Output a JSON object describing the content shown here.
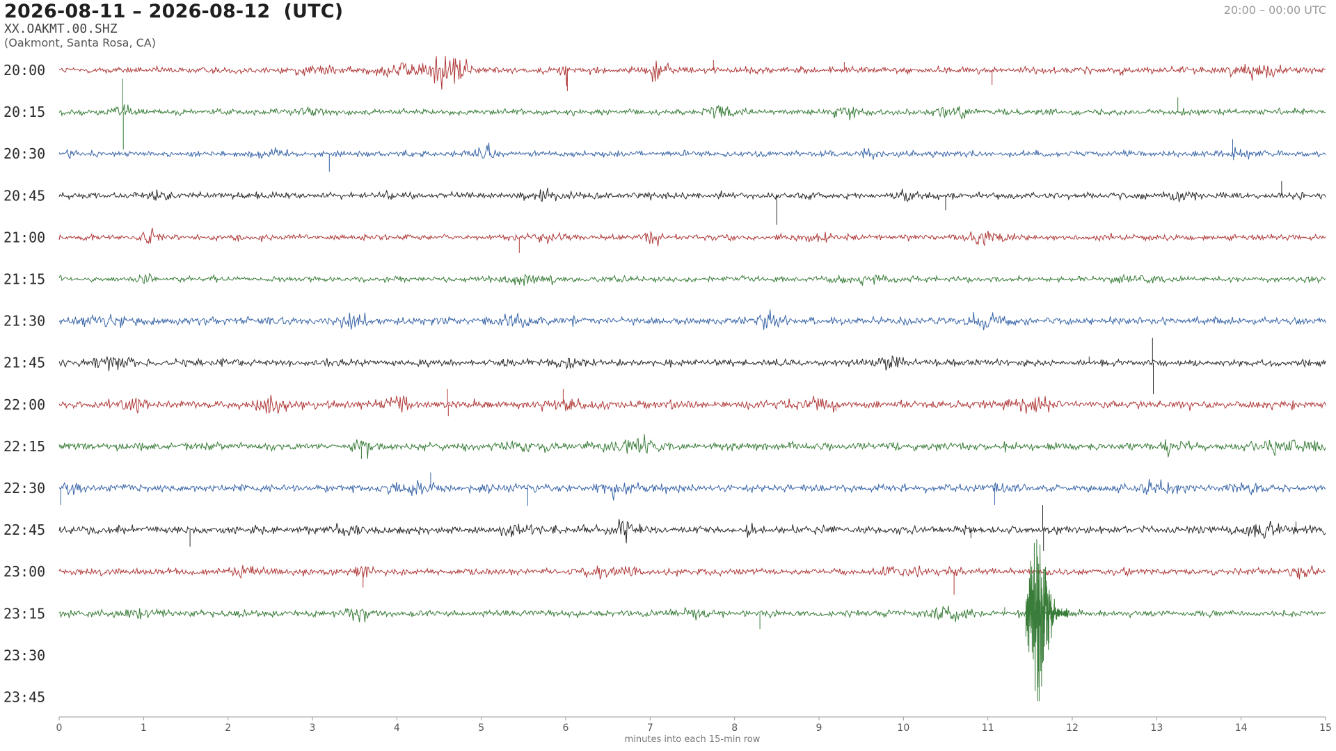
{
  "header": {
    "title": "2026-08-11 – 2026-08-12  (UTC)",
    "station": "XX.OAKMT.00.SHZ",
    "location": "(Oakmont, Santa Rosa, CA)",
    "time_range": "20:00 – 00:00 UTC"
  },
  "chart_data": {
    "type": "line",
    "title": "2026-08-11 – 2026-08-12  (UTC)",
    "xlabel": "minutes into each 15-min row",
    "ylabel": "",
    "xlim": [
      0,
      15
    ],
    "x_ticks": [
      "0",
      "1",
      "2",
      "3",
      "4",
      "5",
      "6",
      "7",
      "8",
      "9",
      "10",
      "11",
      "12",
      "13",
      "14",
      "15"
    ],
    "grid": false,
    "colors": [
      "#b03a3a",
      "#3a7d3a",
      "#3a66a8",
      "#2b2b2b"
    ],
    "rows": [
      {
        "label": "20:00",
        "color": "#b03a3a",
        "noise": 0.35,
        "bursts": [
          [
            4.6,
            1.3,
            0.25
          ],
          [
            4.1,
            0.55,
            0.3
          ],
          [
            7.1,
            0.8,
            0.12
          ],
          [
            6.0,
            0.9,
            0.05
          ],
          [
            14.2,
            0.45,
            0.3
          ],
          [
            3.0,
            0.3,
            0.2
          ]
        ],
        "spikes": [
          [
            6.02,
            -1.0
          ],
          [
            7.75,
            0.5
          ],
          [
            11.05,
            -0.7
          ],
          [
            12.6,
            -0.25
          ],
          [
            9.3,
            0.4
          ]
        ]
      },
      {
        "label": "20:15",
        "color": "#3a7d3a",
        "noise": 0.3,
        "bursts": [
          [
            7.9,
            0.4,
            0.2
          ],
          [
            9.3,
            0.35,
            0.2
          ],
          [
            10.6,
            0.35,
            0.2
          ],
          [
            0.75,
            0.3,
            0.15
          ],
          [
            3.0,
            0.25,
            0.2
          ]
        ],
        "spikes": [
          [
            0.75,
            1.6
          ],
          [
            0.76,
            -1.8
          ],
          [
            13.25,
            0.7
          ]
        ]
      },
      {
        "label": "20:30",
        "color": "#3a66a8",
        "noise": 0.3,
        "bursts": [
          [
            5.05,
            0.65,
            0.1
          ],
          [
            9.6,
            0.5,
            0.1
          ],
          [
            2.5,
            0.3,
            0.2
          ],
          [
            14.0,
            0.35,
            0.15
          ],
          [
            0.1,
            0.3,
            0.1
          ]
        ],
        "spikes": [
          [
            3.2,
            -0.85
          ],
          [
            13.9,
            0.7
          ],
          [
            13.91,
            -0.3
          ]
        ]
      },
      {
        "label": "20:45",
        "color": "#2b2b2b",
        "noise": 0.35,
        "bursts": [
          [
            5.8,
            0.35,
            0.15
          ],
          [
            10.1,
            0.35,
            0.2
          ],
          [
            13.2,
            0.35,
            0.15
          ],
          [
            1.2,
            0.3,
            0.1
          ]
        ],
        "spikes": [
          [
            8.5,
            -1.4
          ],
          [
            10.5,
            -0.7
          ],
          [
            14.48,
            0.7
          ],
          [
            8.9,
            -0.2
          ]
        ]
      },
      {
        "label": "21:00",
        "color": "#b03a3a",
        "noise": 0.3,
        "bursts": [
          [
            7.05,
            0.7,
            0.1
          ],
          [
            11.0,
            0.45,
            0.3
          ],
          [
            1.1,
            0.45,
            0.12
          ],
          [
            5.8,
            0.35,
            0.2
          ],
          [
            9.0,
            0.3,
            0.12
          ]
        ],
        "spikes": [
          [
            5.45,
            -0.75
          ]
        ]
      },
      {
        "label": "21:15",
        "color": "#3a7d3a",
        "noise": 0.28,
        "bursts": [
          [
            1.0,
            0.35,
            0.1
          ],
          [
            5.5,
            0.3,
            0.3
          ],
          [
            9.5,
            0.3,
            0.3
          ],
          [
            12.8,
            0.3,
            0.3
          ]
        ],
        "spikes": []
      },
      {
        "label": "21:30",
        "color": "#3a66a8",
        "noise": 0.4,
        "bursts": [
          [
            3.5,
            0.7,
            0.15
          ],
          [
            5.4,
            0.45,
            0.2
          ],
          [
            8.4,
            0.55,
            0.15
          ],
          [
            11.0,
            0.4,
            0.3
          ],
          [
            0.5,
            0.35,
            0.3
          ]
        ],
        "spikes": []
      },
      {
        "label": "21:45",
        "color": "#2b2b2b",
        "noise": 0.35,
        "bursts": [
          [
            9.8,
            0.45,
            0.2
          ],
          [
            0.6,
            0.4,
            0.3
          ],
          [
            6.0,
            0.3,
            0.3
          ]
        ],
        "spikes": [
          [
            12.95,
            1.2
          ],
          [
            12.96,
            -1.5
          ],
          [
            12.2,
            0.3
          ]
        ]
      },
      {
        "label": "22:00",
        "color": "#b03a3a",
        "noise": 0.4,
        "bursts": [
          [
            0.9,
            0.6,
            0.15
          ],
          [
            2.5,
            0.45,
            0.2
          ],
          [
            4.0,
            0.55,
            0.15
          ],
          [
            6.0,
            0.45,
            0.3
          ],
          [
            9.0,
            0.45,
            0.2
          ],
          [
            11.5,
            0.4,
            0.3
          ]
        ],
        "spikes": [
          [
            4.6,
            0.75
          ],
          [
            4.61,
            -0.55
          ],
          [
            5.97,
            0.75
          ],
          [
            9.2,
            -0.3
          ]
        ]
      },
      {
        "label": "22:15",
        "color": "#3a7d3a",
        "noise": 0.4,
        "bursts": [
          [
            3.6,
            0.7,
            0.1
          ],
          [
            6.8,
            0.55,
            0.3
          ],
          [
            5.5,
            0.35,
            0.2
          ],
          [
            13.2,
            0.4,
            0.15
          ],
          [
            14.6,
            0.45,
            0.3
          ]
        ],
        "spikes": [
          [
            3.58,
            -0.6
          ]
        ]
      },
      {
        "label": "22:30",
        "color": "#3a66a8",
        "noise": 0.4,
        "bursts": [
          [
            0.15,
            0.9,
            0.08
          ],
          [
            4.2,
            0.5,
            0.2
          ],
          [
            6.6,
            0.4,
            0.2
          ],
          [
            11.2,
            0.45,
            0.15
          ],
          [
            13.0,
            0.4,
            0.3
          ],
          [
            14.0,
            0.4,
            0.2
          ]
        ],
        "spikes": [
          [
            4.4,
            0.75
          ],
          [
            5.55,
            -0.85
          ],
          [
            11.08,
            -0.8
          ],
          [
            0.02,
            -0.8
          ]
        ]
      },
      {
        "label": "22:45",
        "color": "#2b2b2b",
        "noise": 0.4,
        "bursts": [
          [
            3.4,
            0.55,
            0.15
          ],
          [
            6.7,
            0.6,
            0.2
          ],
          [
            8.2,
            0.45,
            0.1
          ],
          [
            5.4,
            0.35,
            0.2
          ],
          [
            14.3,
            0.45,
            0.25
          ]
        ],
        "spikes": [
          [
            1.55,
            -0.8
          ],
          [
            10.8,
            -0.4
          ],
          [
            11.65,
            1.2
          ],
          [
            11.66,
            -1.0
          ],
          [
            14.65,
            0.4
          ]
        ]
      },
      {
        "label": "23:00",
        "color": "#b03a3a",
        "noise": 0.35,
        "bursts": [
          [
            3.6,
            0.45,
            0.1
          ],
          [
            6.5,
            0.35,
            0.3
          ],
          [
            10.0,
            0.35,
            0.3
          ],
          [
            2.2,
            0.3,
            0.2
          ],
          [
            14.7,
            0.35,
            0.15
          ]
        ],
        "spikes": [
          [
            3.6,
            -0.75
          ],
          [
            10.6,
            -1.1
          ]
        ]
      },
      {
        "label": "23:15",
        "color": "#3a7d3a",
        "noise": 0.35,
        "bursts": [
          [
            3.5,
            0.4,
            0.2
          ],
          [
            1.0,
            0.3,
            0.2
          ],
          [
            7.5,
            0.3,
            0.3
          ],
          [
            10.5,
            0.3,
            0.3
          ]
        ],
        "spikes": [
          [
            8.3,
            -0.75
          ],
          [
            11.2,
            0.3
          ]
        ]
      },
      {
        "label": "23:30",
        "color": "#3a66a8",
        "noise": 0.0,
        "bursts": [],
        "spikes": []
      },
      {
        "label": "23:45",
        "color": "#2b2b2b",
        "noise": 0.0,
        "bursts": [],
        "spikes": []
      }
    ],
    "event": {
      "row": "23:15",
      "start_min": 11.45,
      "end_min": 11.95,
      "peak_min": 11.6,
      "color": "#3a7d3a"
    }
  }
}
